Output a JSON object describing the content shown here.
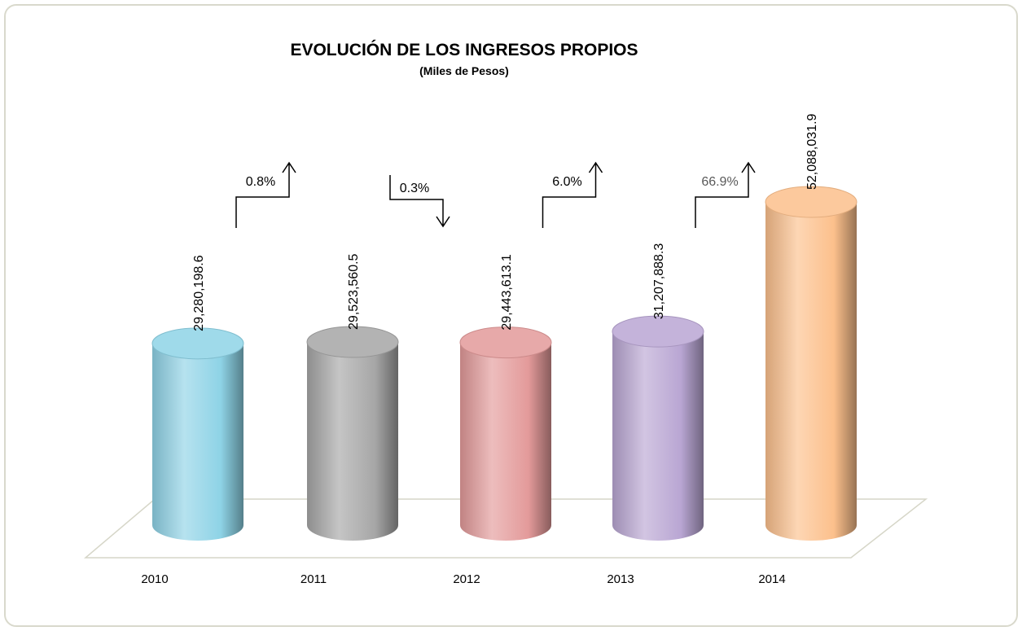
{
  "chart_data": {
    "type": "bar",
    "title": "EVOLUCIÓN DE LOS INGRESOS PROPIOS",
    "subtitle": "(Miles de Pesos)",
    "categories": [
      "2010",
      "2011",
      "2012",
      "2013",
      "2014"
    ],
    "values": [
      29280198.6,
      29523560.5,
      29443613.1,
      31207888.3,
      52088031.9
    ],
    "value_labels": [
      "29,280,198.6",
      "29,523,560.5",
      "29,443,613.1",
      "31,207,888.3",
      "52,088,031.9"
    ],
    "colors": [
      "#8ed3e6",
      "#a6a6a6",
      "#e39a9a",
      "#b9a6d3",
      "#fcc08c"
    ],
    "annotations": [
      {
        "text": "0.8%",
        "direction": "up",
        "color": "#000000"
      },
      {
        "text": "0.3%",
        "direction": "down",
        "color": "#000000"
      },
      {
        "text": "6.0%",
        "direction": "up",
        "color": "#000000"
      },
      {
        "text": "66.9%",
        "direction": "up",
        "color": "#595959"
      }
    ]
  }
}
